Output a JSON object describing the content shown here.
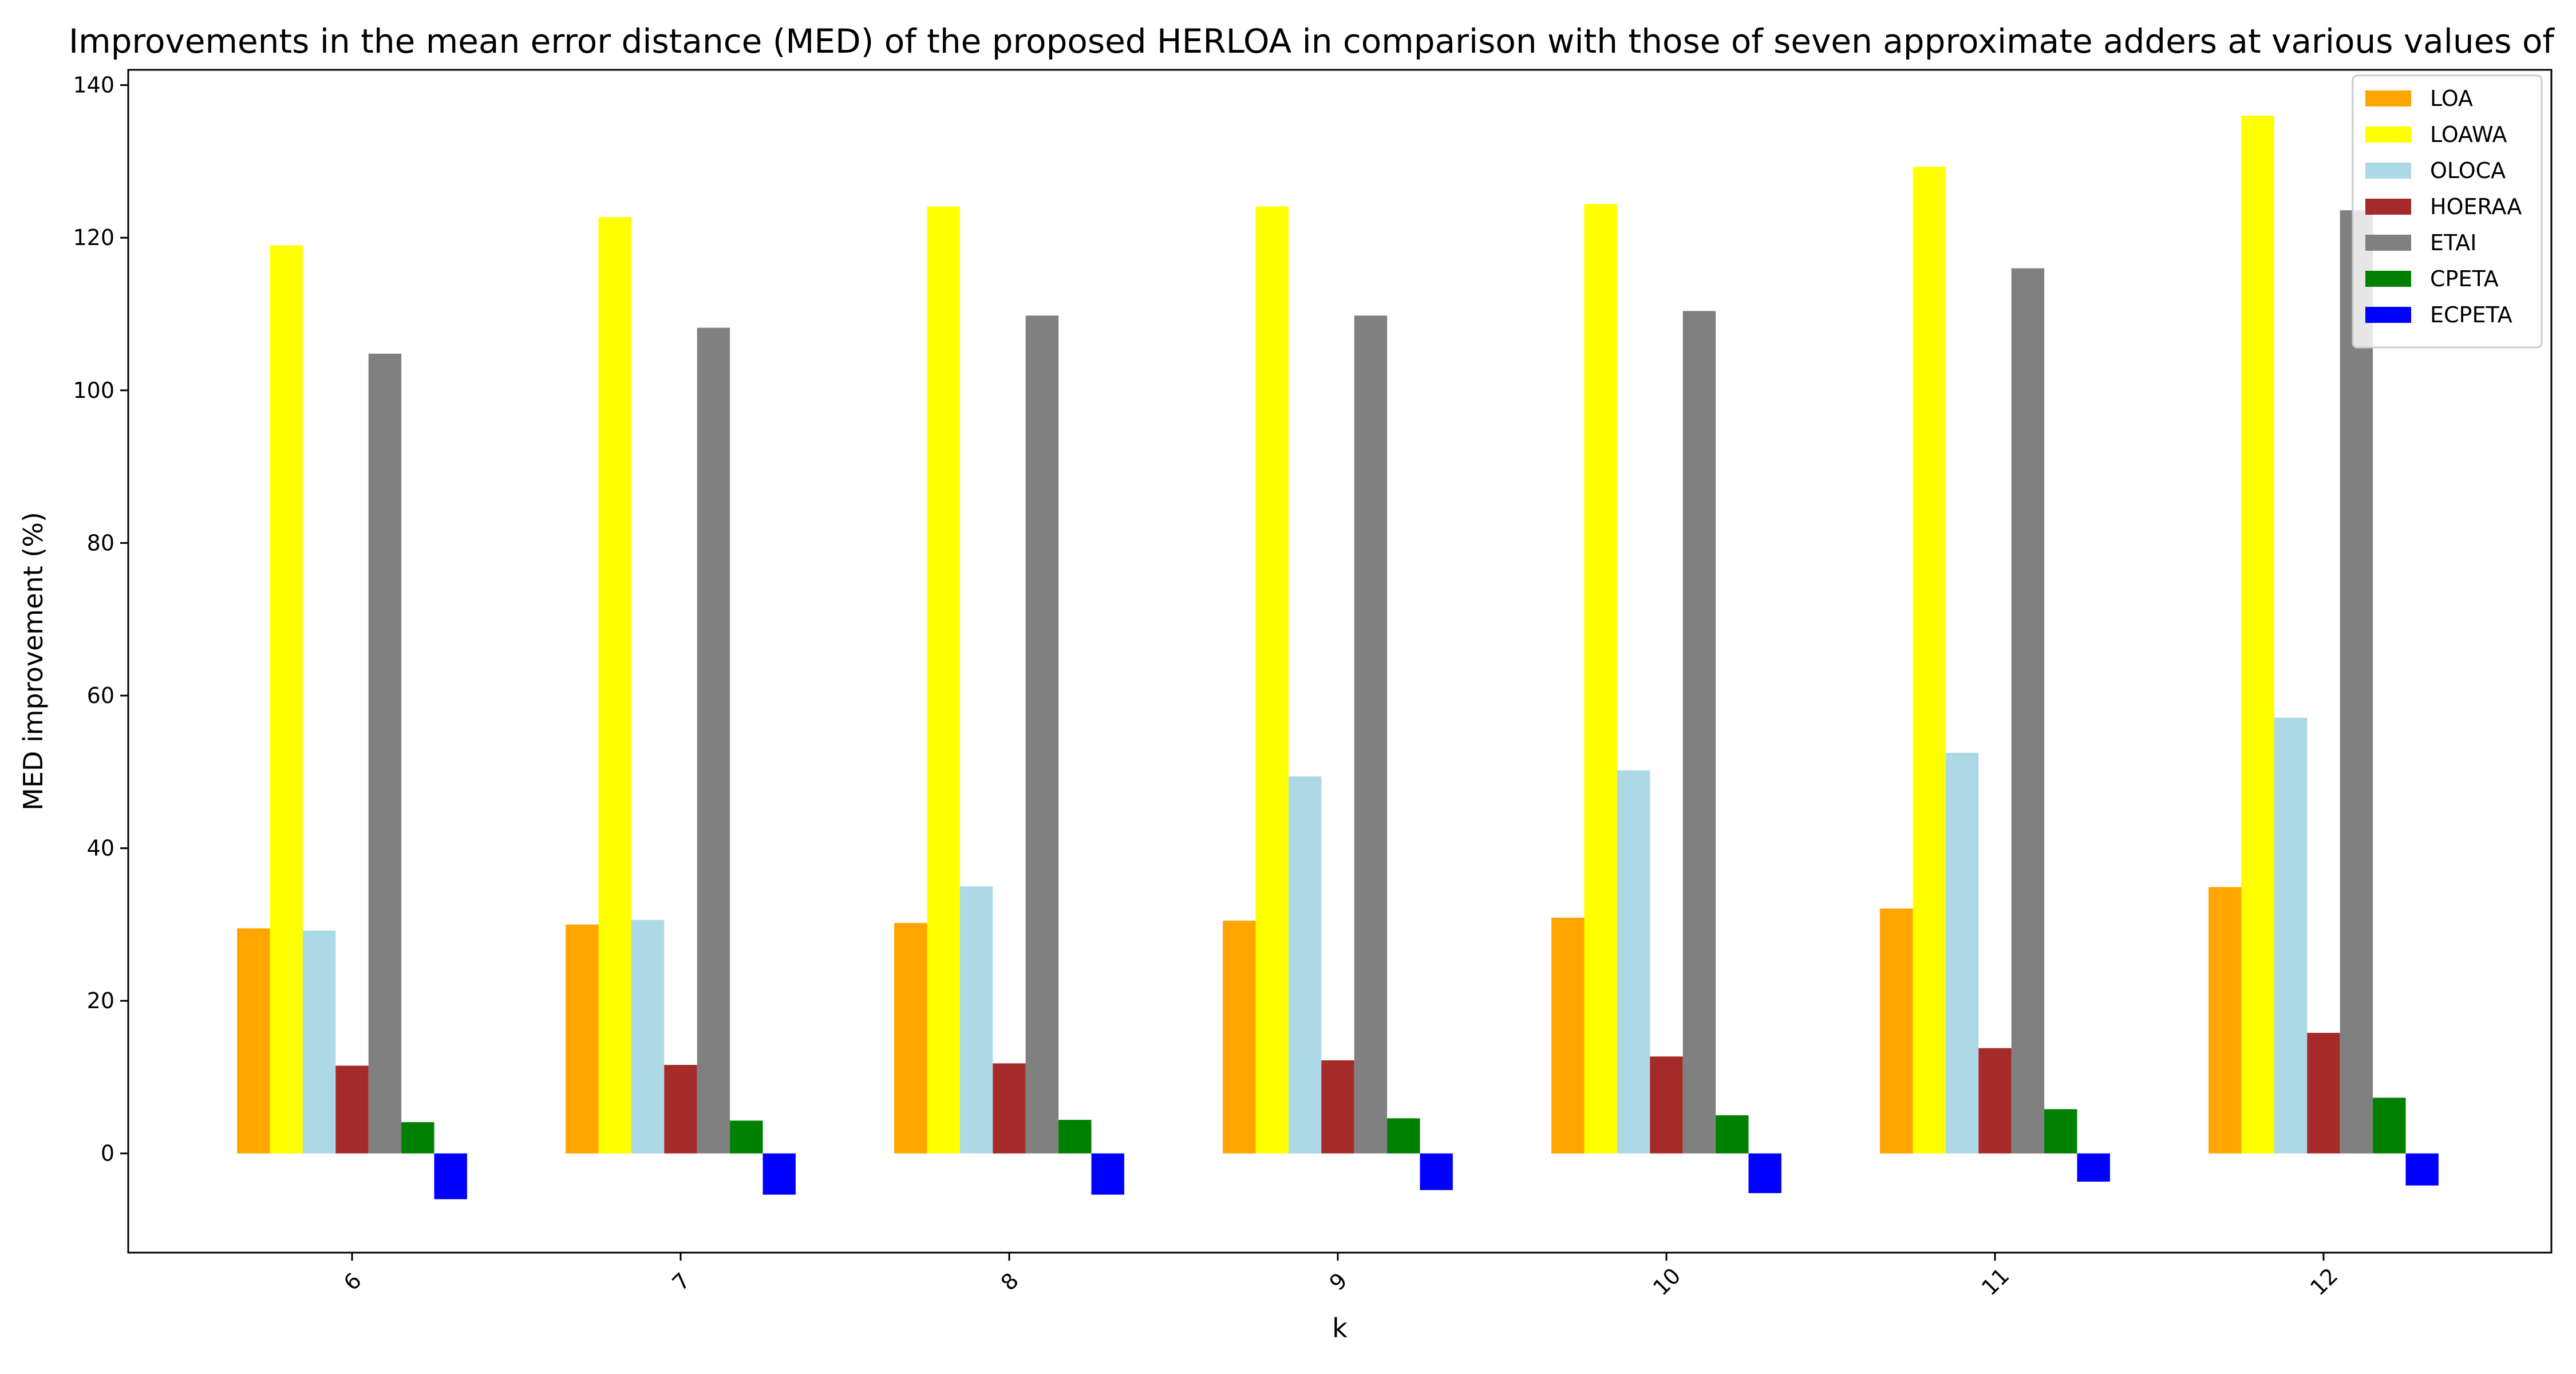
{
  "chart_data": {
    "type": "bar",
    "title": "Improvements in the mean error distance (MED) of the proposed HERLOA in comparison with those of seven approximate adders at various values of",
    "xlabel": "k",
    "ylabel": "MED improvement (%)",
    "ylim": [
      -13,
      142
    ],
    "yticks": [
      0,
      20,
      40,
      60,
      80,
      100,
      120,
      140
    ],
    "categories": [
      "6",
      "7",
      "8",
      "9",
      "10",
      "11",
      "12"
    ],
    "grid": false,
    "legend_position": "top-right",
    "series": [
      {
        "name": "LOA",
        "color": "#FFA500",
        "values": [
          29.5,
          30.0,
          30.2,
          30.5,
          30.9,
          32.1,
          34.9
        ]
      },
      {
        "name": "LOAWA",
        "color": "#FFFF00",
        "values": [
          119.0,
          122.7,
          124.1,
          124.1,
          124.4,
          129.3,
          136.0
        ]
      },
      {
        "name": "OLOCA",
        "color": "#ADD8E6",
        "values": [
          29.2,
          30.6,
          35.0,
          49.4,
          50.2,
          52.5,
          57.1
        ]
      },
      {
        "name": "HOERAA",
        "color": "#A52A2A",
        "values": [
          11.5,
          11.6,
          11.8,
          12.2,
          12.7,
          13.8,
          15.8
        ]
      },
      {
        "name": "ETAI",
        "color": "#808080",
        "values": [
          104.8,
          108.2,
          109.8,
          109.8,
          110.4,
          116.0,
          123.6
        ]
      },
      {
        "name": "CPETA",
        "color": "#008000",
        "values": [
          4.1,
          4.3,
          4.4,
          4.6,
          5.0,
          5.8,
          7.3
        ]
      },
      {
        "name": "ECPETA",
        "color": "#0000FF",
        "values": [
          -6.0,
          -5.4,
          -5.4,
          -4.8,
          -5.2,
          -3.7,
          -4.2
        ]
      }
    ]
  }
}
